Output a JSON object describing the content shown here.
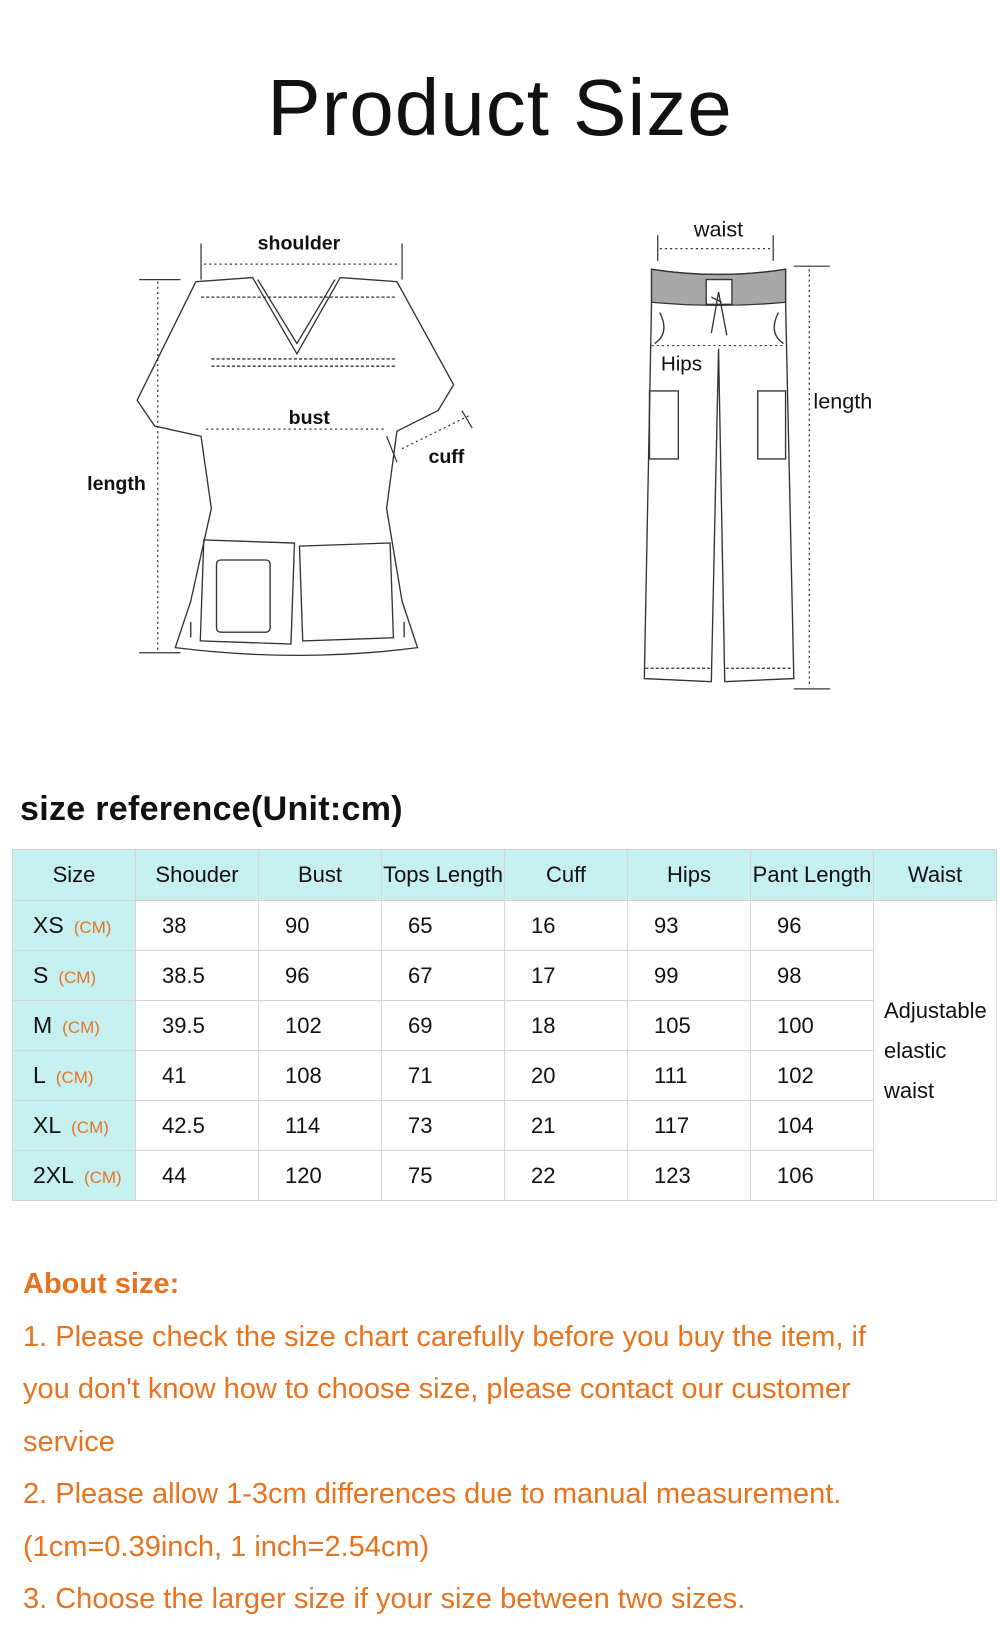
{
  "title": "Product Size",
  "diagram": {
    "top_labels": {
      "shoulder": "shoulder",
      "bust": "bust",
      "cuff": "cuff",
      "length": "length"
    },
    "pants_labels": {
      "waist": "waist",
      "hips": "Hips",
      "length": "length"
    }
  },
  "size_reference": "size reference(Unit:cm)",
  "table": {
    "headers": [
      "Size",
      "Shouder",
      "Bust",
      "Tops Length",
      "Cuff",
      "Hips",
      "Pant Length",
      "Waist"
    ],
    "unit": "(CM)",
    "rows": [
      {
        "size": "XS",
        "shoulder": "38",
        "bust": "90",
        "tops_length": "65",
        "cuff": "16",
        "hips": "93",
        "pant_length": "96"
      },
      {
        "size": "S",
        "shoulder": "38.5",
        "bust": "96",
        "tops_length": "67",
        "cuff": "17",
        "hips": "99",
        "pant_length": "98"
      },
      {
        "size": "M",
        "shoulder": "39.5",
        "bust": "102",
        "tops_length": "69",
        "cuff": "18",
        "hips": "105",
        "pant_length": "100"
      },
      {
        "size": "L",
        "shoulder": "41",
        "bust": "108",
        "tops_length": "71",
        "cuff": "20",
        "hips": "111",
        "pant_length": "102"
      },
      {
        "size": "XL",
        "shoulder": "42.5",
        "bust": "114",
        "tops_length": "73",
        "cuff": "21",
        "hips": "117",
        "pant_length": "104"
      },
      {
        "size": "2XL",
        "shoulder": "44",
        "bust": "120",
        "tops_length": "75",
        "cuff": "22",
        "hips": "123",
        "pant_length": "106"
      }
    ],
    "waist_note": [
      "Adjustable",
      "elastic",
      "waist"
    ]
  },
  "about": {
    "heading": "About size:",
    "lines": [
      "1. Please check the size chart carefully before you buy the item, if",
      "you don't know how to choose size, please contact our customer",
      "service",
      "2. Please allow 1-3cm differences due to manual measurement.",
      "(1cm=0.39inch, 1 inch=2.54cm)",
      "3. Choose the larger size if your size between two sizes."
    ]
  },
  "colors": {
    "header_bg": "#c6eff0",
    "accent_orange": "#e8731e",
    "text": "#111111"
  }
}
